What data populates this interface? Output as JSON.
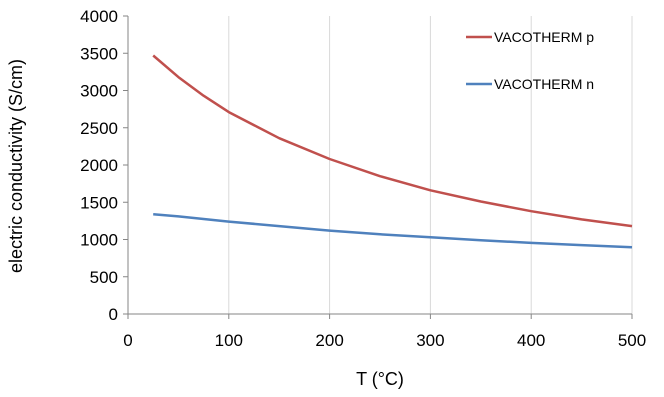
{
  "chart_data": {
    "type": "line",
    "title": "",
    "xlabel": "T (°C)",
    "ylabel": "electric conductivity (S/cm)",
    "xlim": [
      0,
      500
    ],
    "ylim": [
      0,
      4000
    ],
    "x_ticks": [
      0,
      100,
      200,
      300,
      400,
      500
    ],
    "y_ticks": [
      0,
      500,
      1000,
      1500,
      2000,
      2500,
      3000,
      3500,
      4000
    ],
    "grid": "vertical",
    "legend_position": "top-right",
    "series": [
      {
        "name": "VACOTHERM p",
        "color": "#c0504d",
        "x": [
          25,
          50,
          75,
          100,
          150,
          200,
          250,
          300,
          350,
          400,
          450,
          500
        ],
        "y": [
          3470,
          3180,
          2930,
          2710,
          2360,
          2080,
          1850,
          1660,
          1510,
          1380,
          1270,
          1180
        ]
      },
      {
        "name": "VACOTHERM n",
        "color": "#4f81bd",
        "x": [
          25,
          50,
          100,
          150,
          200,
          250,
          300,
          350,
          400,
          450,
          500
        ],
        "y": [
          1340,
          1310,
          1240,
          1180,
          1120,
          1070,
          1030,
          990,
          955,
          925,
          895
        ]
      }
    ]
  }
}
